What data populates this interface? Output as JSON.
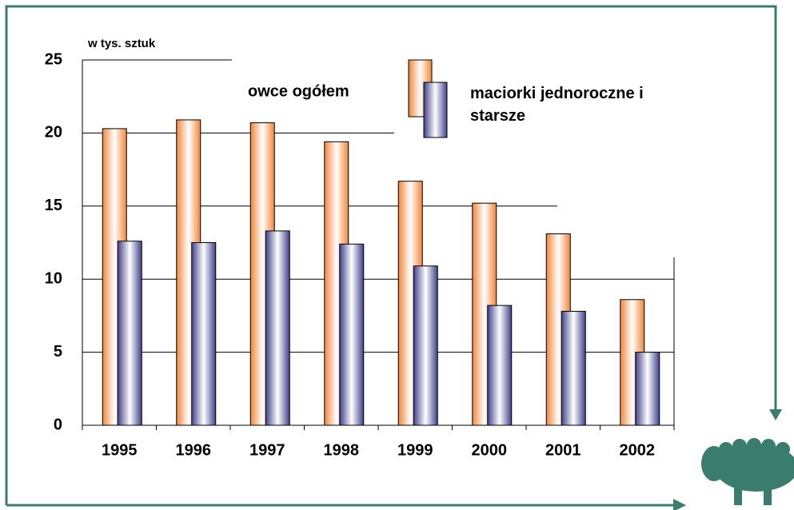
{
  "chart_data": {
    "type": "bar",
    "y_axis_label": "w tys. sztuk",
    "categories": [
      "1995",
      "1996",
      "1997",
      "1998",
      "1999",
      "2000",
      "2001",
      "2002"
    ],
    "series": [
      {
        "name": "owce ogółem",
        "color": "#f0863a",
        "values": [
          20.3,
          20.9,
          20.7,
          19.4,
          16.7,
          15.2,
          13.1,
          8.6
        ]
      },
      {
        "name": "maciorki jednoroczne i starsze",
        "color": "#40408c",
        "values": [
          12.6,
          12.5,
          13.3,
          12.4,
          10.9,
          8.2,
          7.8,
          5.0
        ]
      }
    ],
    "ylim": [
      0,
      25
    ],
    "yticks": [
      0,
      5,
      10,
      15,
      20,
      25
    ],
    "grid": true
  }
}
